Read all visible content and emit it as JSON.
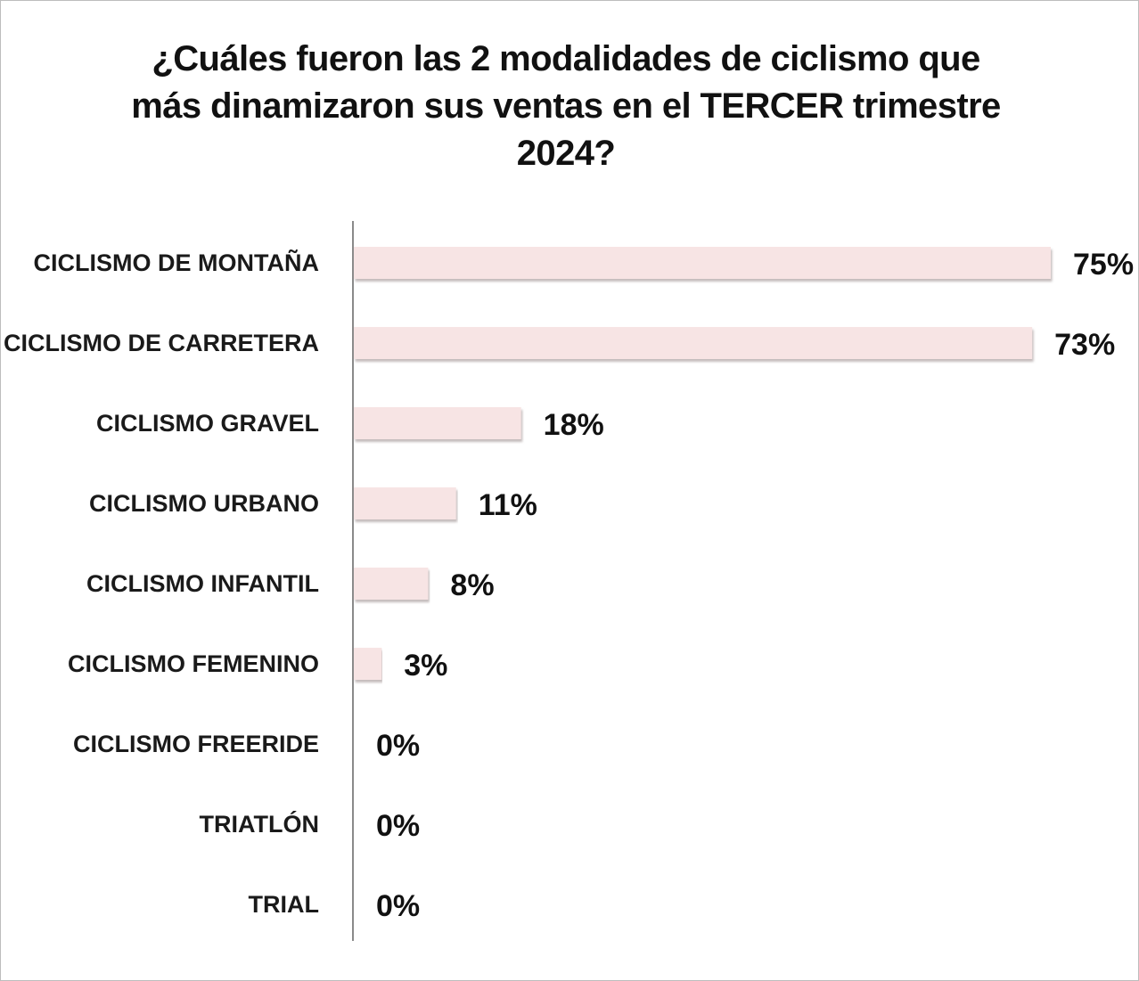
{
  "chart_data": {
    "type": "bar",
    "orientation": "horizontal",
    "title_lines": [
      "¿Cuáles fueron las 2 modalidades de ciclismo que",
      "más dinamizaron sus ventas en el TERCER trimestre",
      "2024?"
    ],
    "categories": [
      "CICLISMO DE MONTAÑA",
      "CICLISMO DE CARRETERA",
      "CICLISMO GRAVEL",
      "CICLISMO URBANO",
      "CICLISMO INFANTIL",
      "CICLISMO FEMENINO",
      "CICLISMO FREERIDE",
      "TRIATLÓN",
      "TRIAL"
    ],
    "values": [
      75,
      73,
      18,
      11,
      8,
      3,
      0,
      0,
      0
    ],
    "value_labels": [
      "75%",
      "73%",
      "18%",
      "11%",
      "8%",
      "3%",
      "0%",
      "0%",
      "0%"
    ],
    "unit": "%",
    "xlim": [
      0,
      75
    ],
    "grid": false,
    "legend": "none",
    "colors": {
      "bar": "#f7e4e4",
      "bar_shadow": "#c9c0c0",
      "axis": "#8a8a8a",
      "text": "#111111"
    }
  }
}
